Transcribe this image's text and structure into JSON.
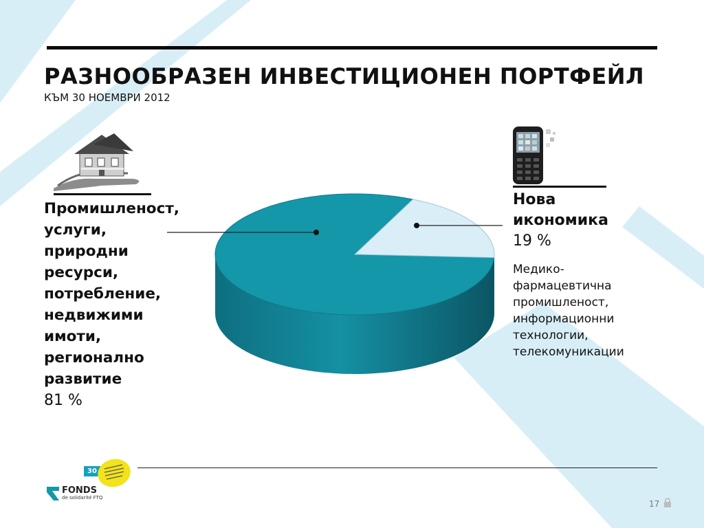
{
  "slide": {
    "title": "РАЗНООБРАЗЕН ИНВЕСТИЦИОНЕН ПОРТФЕЙЛ",
    "subtitle": "КЪМ 30 НОЕМВРИ 2012",
    "page_number": "17"
  },
  "left_block": {
    "lines": [
      "Промишленост,",
      "услуги,",
      "природни",
      "ресурси,",
      "потребление,",
      "недвижими",
      "имоти,",
      "регионално",
      "развитие"
    ],
    "percent": "81 %"
  },
  "right_block": {
    "lines": [
      "Нова",
      "икономика"
    ],
    "percent": "19 %",
    "description_lines": [
      "Медико-",
      "фармацевтична",
      "промишленост,",
      "информационни",
      "технологии,",
      "телекомуникации"
    ]
  },
  "logo": {
    "name": "FONDS",
    "sub": "de solidarité FTQ",
    "badge": "30"
  },
  "icons": {
    "left": "house-in-hand-icon",
    "right": "mobile-phone-icon",
    "lock": "lock-icon"
  },
  "colors": {
    "large_slice": "#1597aa",
    "small_slice": "#daeef8",
    "background_stripes": "#d8eef7",
    "badge": "#f2e31a"
  },
  "chart_data": {
    "type": "pie",
    "categories": [
      "Промишленост, услуги, природни ресурси, потребление, недвижими имоти, регионално развитие",
      "Нова икономика"
    ],
    "values": [
      81,
      19
    ],
    "unit": "%"
  }
}
